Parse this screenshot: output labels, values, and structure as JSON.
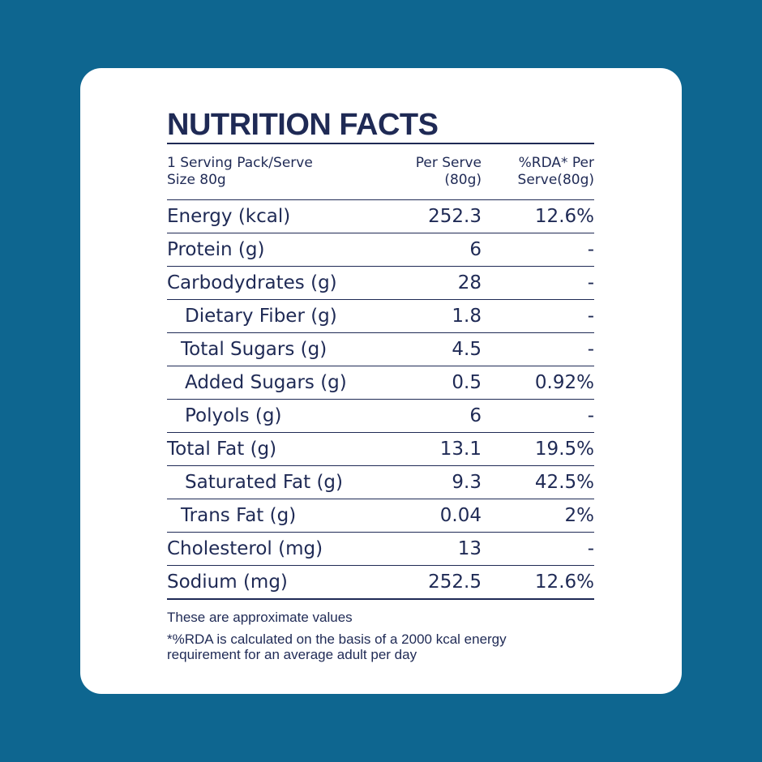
{
  "title": "NUTRITION FACTS",
  "header": {
    "serving_line1": "1 Serving Pack/Serve",
    "serving_line2": "Size 80g",
    "per_serve_line1": "Per Serve",
    "per_serve_line2": "(80g)",
    "rda_line1": "%RDA* Per",
    "rda_line2": "Serve(80g)"
  },
  "rows": [
    {
      "name": "Energy (kcal)",
      "per_serve": "252.3",
      "rda": "12.6%"
    },
    {
      "name": "Protein (g)",
      "per_serve": "6",
      "rda": "-"
    },
    {
      "name": "Carbodydrates (g)",
      "per_serve": "28",
      "rda": "-"
    },
    {
      "name": "Dietary Fiber (g)",
      "per_serve": "1.8",
      "rda": "-"
    },
    {
      "name": "Total Sugars (g)",
      "per_serve": "4.5",
      "rda": "-"
    },
    {
      "name": "Added Sugars (g)",
      "per_serve": "0.5",
      "rda": "0.92%"
    },
    {
      "name": "Polyols (g)",
      "per_serve": "6",
      "rda": "-"
    },
    {
      "name": "Total Fat (g)",
      "per_serve": "13.1",
      "rda": "19.5%"
    },
    {
      "name": "Saturated Fat (g)",
      "per_serve": "9.3",
      "rda": "42.5%"
    },
    {
      "name": "Trans Fat (g)",
      "per_serve": "0.04",
      "rda": "2%"
    },
    {
      "name": "Cholesterol (mg)",
      "per_serve": "13",
      "rda": "-"
    },
    {
      "name": "Sodium (mg)",
      "per_serve": "252.5",
      "rda": "12.6%"
    }
  ],
  "notes": {
    "approx": "These are approximate values",
    "rda_line1": "*%RDA is calculated on the basis of a 2000 kcal energy",
    "rda_line2": "requirement for an average adult per day"
  },
  "colors": {
    "background": "#0e6690",
    "card": "#ffffff",
    "text": "#1f2a55"
  }
}
